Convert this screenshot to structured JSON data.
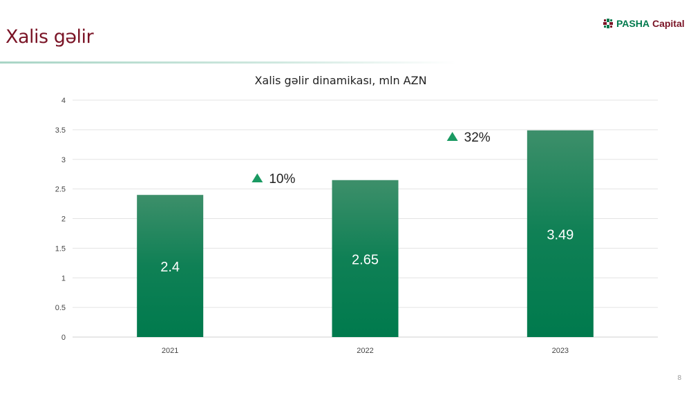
{
  "header": {
    "title": "Xalis gəlir",
    "logo_text_1": "PASHA",
    "logo_text_2": "Capital"
  },
  "page_number": "8",
  "chart_data": {
    "type": "bar",
    "title": "Xalis gəlir dinamikası, mln AZN",
    "categories": [
      "2021",
      "2022",
      "2023"
    ],
    "values": [
      2.4,
      2.65,
      3.49
    ],
    "data_labels": [
      "2.4",
      "2.65",
      "3.49"
    ],
    "ylim": [
      0,
      4
    ],
    "yticks": [
      "0",
      "0.5",
      "1",
      "1.5",
      "2",
      "2.5",
      "3",
      "3.5",
      "4"
    ],
    "grid": true,
    "bar_color_top": "#3d8f6a",
    "bar_color_bottom": "#007a4d",
    "annotations": [
      {
        "text": "10%",
        "icon": "triangle-up-icon",
        "between": [
          "2021",
          "2022"
        ]
      },
      {
        "text": "32%",
        "icon": "triangle-up-icon",
        "between": [
          "2022",
          "2023"
        ]
      }
    ]
  }
}
